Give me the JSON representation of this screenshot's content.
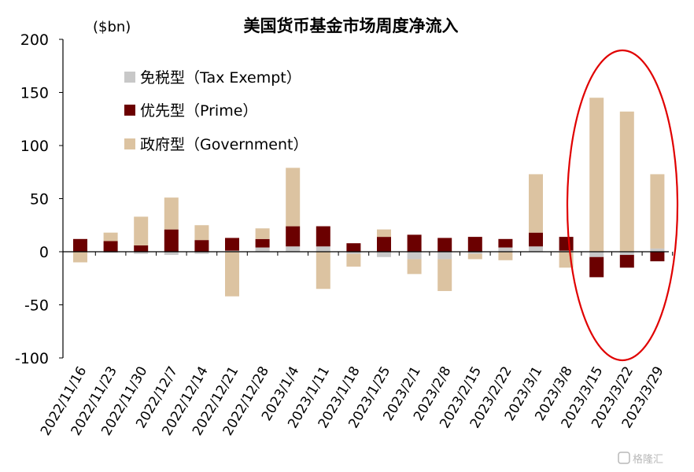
{
  "chart_data": {
    "type": "bar",
    "stacked": true,
    "title": "美国货币基金市场周度净流入",
    "unit_label": "($bn)",
    "ylim": [
      -100,
      200
    ],
    "yticks": [
      200,
      150,
      100,
      50,
      0,
      -50,
      -100
    ],
    "categories": [
      "2022/11/16",
      "2022/11/23",
      "2022/11/30",
      "2022/12/7",
      "2022/12/14",
      "2022/12/21",
      "2022/12/28",
      "2023/1/4",
      "2023/1/11",
      "2023/1/18",
      "2023/1/25",
      "2023/2/1",
      "2023/2/8",
      "2023/2/15",
      "2023/2/22",
      "2023/3/1",
      "2023/3/8",
      "2023/3/15",
      "2023/3/22",
      "2023/3/29"
    ],
    "series": [
      {
        "name": "免税型（Tax Exempt）",
        "color": "#c8c8c8",
        "values": [
          0,
          -1,
          -2,
          -3,
          -2,
          1,
          4,
          5,
          5,
          -2,
          -5,
          -7,
          -7,
          -2,
          4,
          5,
          1,
          -5,
          -3,
          3
        ]
      },
      {
        "name": "优先型（Prime）",
        "color": "#6b0000",
        "values": [
          12,
          10,
          6,
          21,
          11,
          12,
          8,
          19,
          19,
          8,
          14,
          16,
          13,
          14,
          8,
          13,
          13,
          -19,
          -12,
          -9
        ]
      },
      {
        "name": "政府型（Government）",
        "color": "#dcc3a1",
        "values": [
          -10,
          8,
          27,
          30,
          14,
          -42,
          10,
          55,
          -35,
          -12,
          7,
          -14,
          -30,
          -5,
          -8,
          55,
          -15,
          145,
          132,
          70
        ]
      }
    ],
    "legend_position": "top-left",
    "grid": false,
    "annotation": "red ellipse highlighting 2023/3/15–2023/3/29"
  },
  "watermark": "格隆汇"
}
